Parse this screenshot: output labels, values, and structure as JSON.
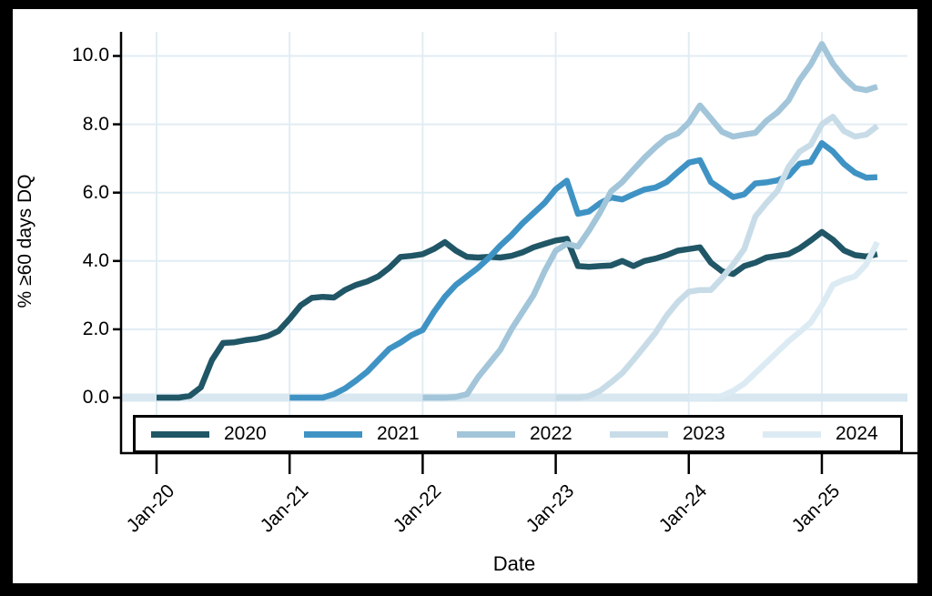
{
  "chart_data": {
    "type": "line",
    "title": "",
    "xlabel": "Date",
    "ylabel": "% ≥60 days DQ",
    "x_unit": "months since Jan-2020",
    "xtick_labels": [
      "Jan-20",
      "Jan-21",
      "Jan-22",
      "Jan-23",
      "Jan-24",
      "Jan-25"
    ],
    "xtick_month_index": [
      0,
      12,
      24,
      36,
      48,
      60
    ],
    "ytick_labels": [
      "0.0",
      "2.0",
      "4.0",
      "6.0",
      "8.0",
      "10.0"
    ],
    "yticks": [
      0,
      2,
      4,
      6,
      8,
      10
    ],
    "ylim": [
      -1.6,
      10.7
    ],
    "grid": true,
    "grid_color": "#e1edf4",
    "zero_band_color": "#d8e7f0",
    "axis_color": "#000000",
    "legend_position": "bottom",
    "series": [
      {
        "name": "2020",
        "color": "#205666",
        "start_month": 0,
        "values": [
          0,
          0,
          0,
          0.05,
          0.3,
          1.1,
          1.6,
          1.62,
          1.68,
          1.72,
          1.8,
          1.95,
          2.3,
          2.7,
          2.92,
          2.95,
          2.93,
          3.15,
          3.3,
          3.4,
          3.55,
          3.8,
          4.12,
          4.15,
          4.2,
          4.35,
          4.55,
          4.3,
          4.12,
          4.1,
          4.12,
          4.1,
          4.15,
          4.25,
          4.4,
          4.5,
          4.6,
          4.65,
          3.85,
          3.83,
          3.85,
          3.87,
          4.0,
          3.85,
          4.0,
          4.07,
          4.17,
          4.3,
          4.35,
          4.4,
          3.95,
          3.7,
          3.62,
          3.85,
          3.95,
          4.1,
          4.15,
          4.2,
          4.37,
          4.6,
          4.85,
          4.62,
          4.31,
          4.17,
          4.13,
          4.2
        ]
      },
      {
        "name": "2021",
        "color": "#3f93c4",
        "start_month": 12,
        "values": [
          0,
          0,
          0,
          0,
          0.1,
          0.27,
          0.5,
          0.76,
          1.1,
          1.43,
          1.61,
          1.83,
          1.98,
          2.5,
          2.95,
          3.3,
          3.55,
          3.8,
          4.1,
          4.45,
          4.75,
          5.1,
          5.4,
          5.7,
          6.1,
          6.35,
          5.38,
          5.45,
          5.69,
          5.86,
          5.8,
          5.95,
          6.09,
          6.15,
          6.31,
          6.6,
          6.88,
          6.95,
          6.31,
          6.09,
          5.87,
          5.95,
          6.27,
          6.3,
          6.36,
          6.49,
          6.85,
          6.9,
          7.45,
          7.2,
          6.84,
          6.58,
          6.44,
          6.45
        ]
      },
      {
        "name": "2022",
        "color": "#a2c5d9",
        "start_month": 24,
        "values": [
          0,
          0,
          0,
          0.02,
          0.1,
          0.6,
          1.0,
          1.4,
          2.0,
          2.5,
          3.0,
          3.7,
          4.3,
          4.5,
          4.42,
          4.89,
          5.42,
          6.04,
          6.31,
          6.67,
          7.02,
          7.33,
          7.6,
          7.73,
          8.05,
          8.55,
          8.17,
          7.78,
          7.64,
          7.7,
          7.75,
          8.1,
          8.35,
          8.7,
          9.3,
          9.75,
          10.35,
          9.77,
          9.37,
          9.06,
          9.0,
          9.1
        ]
      },
      {
        "name": "2023",
        "color": "#c8dce8",
        "start_month": 36,
        "values": [
          0,
          0,
          0,
          0.05,
          0.2,
          0.45,
          0.72,
          1.1,
          1.5,
          1.9,
          2.4,
          2.8,
          3.1,
          3.15,
          3.15,
          3.5,
          3.9,
          4.35,
          5.3,
          5.7,
          6.05,
          6.75,
          7.2,
          7.4,
          8.0,
          8.22,
          7.8,
          7.64,
          7.7,
          7.95
        ]
      },
      {
        "name": "2024",
        "color": "#dcebf3",
        "start_month": 48,
        "values": [
          0,
          0,
          0,
          0.05,
          0.2,
          0.41,
          0.72,
          1.03,
          1.34,
          1.65,
          1.92,
          2.2,
          2.7,
          3.3,
          3.45,
          3.55,
          3.9,
          4.55
        ]
      }
    ]
  }
}
